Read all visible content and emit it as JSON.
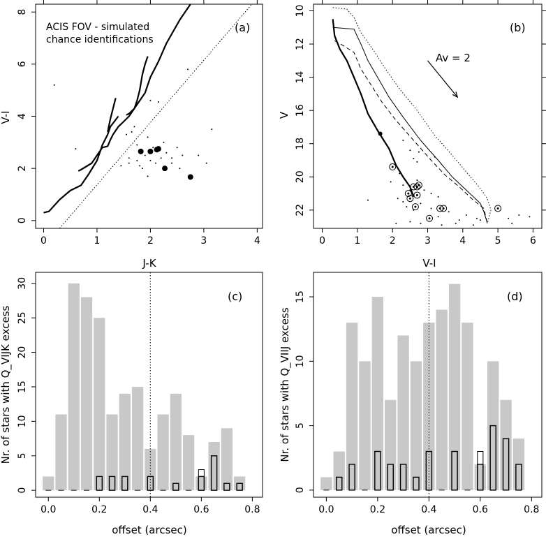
{
  "chart_data": [
    {
      "type": "scatter",
      "panel_label": "(a)",
      "annotation": [
        "ACIS FOV - simulated",
        "chance identifications"
      ],
      "xlabel": "J-K",
      "ylabel": "V-I",
      "xlim": [
        -0.15,
        4.1
      ],
      "ylim": [
        -0.3,
        8.3
      ],
      "x_ticks": [
        "0",
        "1",
        "2",
        "3",
        "4"
      ],
      "y_ticks": [
        "0",
        "2",
        "4",
        "6",
        "8"
      ],
      "big_points": [
        [
          1.82,
          2.65
        ],
        [
          2.0,
          2.65
        ],
        [
          2.12,
          2.72
        ],
        [
          2.15,
          2.75
        ],
        [
          2.27,
          2.0
        ],
        [
          2.75,
          1.67
        ]
      ],
      "small_points": [
        [
          0.2,
          5.2
        ],
        [
          0.6,
          2.75
        ],
        [
          1.55,
          3.3
        ],
        [
          1.65,
          3.4
        ],
        [
          1.7,
          3.6
        ],
        [
          1.45,
          2.1
        ],
        [
          1.6,
          2.4
        ],
        [
          1.6,
          2.2
        ],
        [
          1.75,
          2.9
        ],
        [
          1.75,
          2.3
        ],
        [
          1.8,
          2.1
        ],
        [
          1.85,
          2.0
        ],
        [
          1.9,
          2.5
        ],
        [
          1.95,
          3.2
        ],
        [
          1.95,
          1.7
        ],
        [
          2.0,
          2.3
        ],
        [
          2.05,
          2.8
        ],
        [
          2.1,
          2.2
        ],
        [
          2.2,
          2.4
        ],
        [
          2.25,
          3.0
        ],
        [
          2.3,
          2.6
        ],
        [
          2.4,
          2.2
        ],
        [
          2.4,
          2.4
        ],
        [
          2.5,
          2.8
        ],
        [
          2.55,
          2.0
        ],
        [
          2.6,
          2.5
        ],
        [
          2.9,
          2.5
        ],
        [
          3.05,
          2.2
        ],
        [
          3.15,
          3.5
        ],
        [
          2.0,
          4.6
        ],
        [
          2.15,
          4.55
        ],
        [
          2.7,
          5.8
        ]
      ],
      "lines": [
        {
          "style": "solid-thick",
          "points": [
            [
              0.0,
              0.3
            ],
            [
              0.1,
              0.35
            ],
            [
              0.3,
              0.8
            ],
            [
              0.5,
              1.15
            ],
            [
              0.7,
              1.35
            ],
            [
              0.85,
              1.8
            ],
            [
              1.0,
              2.3
            ],
            [
              1.1,
              2.9
            ],
            [
              1.2,
              3.3
            ],
            [
              1.25,
              3.6
            ],
            [
              1.4,
              4.0
            ]
          ]
        },
        {
          "style": "solid-thick",
          "points": [
            [
              0.65,
              1.9
            ],
            [
              0.7,
              1.95
            ],
            [
              0.9,
              2.2
            ],
            [
              1.0,
              2.5
            ],
            [
              1.1,
              2.8
            ],
            [
              1.2,
              2.85
            ],
            [
              1.25,
              3.1
            ],
            [
              1.3,
              3.3
            ],
            [
              1.4,
              3.6
            ],
            [
              1.5,
              3.8
            ],
            [
              1.6,
              4.0
            ],
            [
              1.7,
              4.3
            ],
            [
              1.8,
              4.6
            ],
            [
              1.9,
              4.9
            ],
            [
              2.0,
              5.5
            ],
            [
              2.15,
              6.1
            ],
            [
              2.3,
              6.8
            ],
            [
              2.55,
              7.7
            ],
            [
              2.75,
              8.3
            ]
          ]
        },
        {
          "style": "solid-thick",
          "points": [
            [
              1.2,
              3.4
            ],
            [
              1.25,
              3.9
            ],
            [
              1.3,
              4.3
            ],
            [
              1.35,
              4.7
            ]
          ]
        },
        {
          "style": "solid-thick",
          "points": [
            [
              1.55,
              4.05
            ],
            [
              1.6,
              4.1
            ],
            [
              1.7,
              4.3
            ],
            [
              1.75,
              4.6
            ],
            [
              1.8,
              5.0
            ],
            [
              1.85,
              5.6
            ],
            [
              1.9,
              6.0
            ],
            [
              1.95,
              6.3
            ]
          ]
        },
        {
          "style": "dotted",
          "points": [
            [
              0.3,
              -0.3
            ],
            [
              3.9,
              8.3
            ]
          ]
        }
      ]
    },
    {
      "type": "scatter",
      "panel_label": "(b)",
      "annotation": "Av = 2",
      "xlabel": "V-I",
      "ylabel": "V",
      "xlim": [
        -0.25,
        6.25
      ],
      "ylim": [
        23.1,
        9.6
      ],
      "x_ticks": [
        "0",
        "1",
        "2",
        "3",
        "4",
        "5",
        "6"
      ],
      "y_ticks": [
        "10",
        "12",
        "14",
        "16",
        "18",
        "20",
        "22"
      ],
      "y_tick_values": [
        10,
        12,
        14,
        16,
        18,
        20,
        22
      ],
      "big_points": [
        [
          1.65,
          17.4
        ]
      ],
      "circled_points": [
        [
          2.0,
          19.4
        ],
        [
          2.45,
          21.0
        ],
        [
          2.5,
          21.3
        ],
        [
          2.6,
          20.6
        ],
        [
          2.7,
          20.6
        ],
        [
          2.75,
          20.5
        ],
        [
          2.7,
          21.1
        ],
        [
          2.65,
          21.8
        ],
        [
          3.05,
          22.5
        ],
        [
          3.35,
          21.9
        ],
        [
          3.45,
          21.9
        ],
        [
          5.0,
          21.9
        ]
      ],
      "small_points": [
        [
          2.3,
          17.8
        ],
        [
          2.5,
          18.4
        ],
        [
          2.6,
          18.9
        ],
        [
          2.7,
          19.1
        ],
        [
          2.75,
          18.5
        ],
        [
          3.2,
          18.8
        ],
        [
          2.2,
          19.8
        ],
        [
          2.3,
          20.5
        ],
        [
          2.5,
          20.8
        ],
        [
          2.7,
          20.2
        ],
        [
          2.9,
          20.8
        ],
        [
          3.1,
          21.0
        ],
        [
          3.3,
          21.2
        ],
        [
          2.3,
          21.5
        ],
        [
          2.4,
          21.8
        ],
        [
          2.6,
          22.0
        ],
        [
          2.8,
          21.6
        ],
        [
          3.1,
          21.9
        ],
        [
          3.3,
          22.4
        ],
        [
          3.6,
          22.1
        ],
        [
          3.9,
          22.6
        ],
        [
          4.1,
          22.3
        ],
        [
          4.4,
          22.5
        ],
        [
          2.1,
          22.8
        ],
        [
          2.5,
          22.7
        ],
        [
          2.8,
          22.8
        ],
        [
          3.4,
          22.9
        ],
        [
          3.8,
          22.8
        ],
        [
          4.3,
          22.9
        ],
        [
          4.5,
          22.6
        ],
        [
          5.3,
          22.5
        ],
        [
          5.6,
          22.3
        ],
        [
          5.4,
          22.8
        ],
        [
          5.9,
          22.4
        ],
        [
          1.3,
          21.4
        ],
        [
          1.95,
          20.3
        ],
        [
          2.15,
          21.3
        ]
      ],
      "lines": [
        {
          "style": "solid-thick",
          "points": [
            [
              0.3,
              10.5
            ],
            [
              0.35,
              11.5
            ],
            [
              0.5,
              12.3
            ],
            [
              0.7,
              13.0
            ],
            [
              0.9,
              14.0
            ],
            [
              1.1,
              15.0
            ],
            [
              1.3,
              16.2
            ],
            [
              1.6,
              17.3
            ],
            [
              1.9,
              18.3
            ],
            [
              2.1,
              19.3
            ],
            [
              2.3,
              20.0
            ],
            [
              2.5,
              20.6
            ],
            [
              2.6,
              21.2
            ]
          ]
        },
        {
          "style": "solid",
          "points": [
            [
              0.3,
              11.0
            ],
            [
              0.9,
              11.1
            ],
            [
              1.1,
              12.0
            ],
            [
              1.3,
              13.0
            ],
            [
              1.6,
              14.1
            ],
            [
              1.9,
              15.2
            ],
            [
              2.3,
              16.4
            ],
            [
              2.8,
              17.8
            ],
            [
              3.3,
              19.0
            ],
            [
              3.7,
              20.0
            ],
            [
              4.1,
              20.8
            ],
            [
              4.5,
              21.6
            ],
            [
              4.6,
              22.1
            ],
            [
              4.7,
              22.8
            ]
          ]
        },
        {
          "style": "dashed",
          "points": [
            [
              0.35,
              11.8
            ],
            [
              0.6,
              12.1
            ],
            [
              0.9,
              12.5
            ],
            [
              1.1,
              13.5
            ],
            [
              1.4,
              14.5
            ],
            [
              1.7,
              15.5
            ],
            [
              2.1,
              16.6
            ],
            [
              2.6,
              17.8
            ],
            [
              3.1,
              19.0
            ],
            [
              3.5,
              19.9
            ],
            [
              3.9,
              20.6
            ],
            [
              4.3,
              21.4
            ],
            [
              4.6,
              21.9
            ],
            [
              4.7,
              22.8
            ]
          ]
        },
        {
          "style": "dotted",
          "points": [
            [
              0.3,
              9.8
            ],
            [
              0.7,
              9.9
            ],
            [
              0.9,
              10.4
            ],
            [
              1.1,
              11.3
            ],
            [
              1.5,
              12.5
            ],
            [
              1.8,
              13.5
            ],
            [
              2.2,
              14.7
            ],
            [
              2.7,
              16.0
            ],
            [
              3.2,
              17.5
            ],
            [
              3.7,
              18.7
            ],
            [
              4.1,
              19.7
            ],
            [
              4.5,
              20.7
            ],
            [
              4.7,
              21.3
            ],
            [
              4.8,
              22.0
            ],
            [
              4.7,
              22.8
            ]
          ]
        }
      ],
      "arrow": {
        "from": [
          3.0,
          13.0
        ],
        "to": [
          3.85,
          15.2
        ]
      }
    },
    {
      "type": "bar",
      "panel_label": "(c)",
      "xlabel": "offset (arcsec)",
      "ylabel": "Nr. of stars with Q_VIJK excess",
      "xlim": [
        -0.05,
        0.84
      ],
      "ylim": [
        -1,
        31.6
      ],
      "x_ticks": [
        "0.0",
        "0.2",
        "0.4",
        "0.6",
        "0.8"
      ],
      "y_ticks": [
        "0",
        "5",
        "10",
        "15",
        "20",
        "25",
        "30"
      ],
      "bin_centers": [
        0.0,
        0.05,
        0.1,
        0.15,
        0.2,
        0.25,
        0.3,
        0.35,
        0.4,
        0.45,
        0.5,
        0.55,
        0.6,
        0.65,
        0.7,
        0.75
      ],
      "grey_values": [
        2,
        11,
        30,
        28,
        25,
        11,
        14,
        15,
        6,
        11,
        14,
        8,
        2,
        7,
        9,
        2
      ],
      "outline_values": [
        0,
        0,
        0,
        0,
        2,
        2,
        2,
        0,
        2,
        0,
        1,
        0,
        3,
        5,
        1,
        1
      ],
      "thick_heights": [
        0,
        0,
        0,
        0,
        2,
        2,
        2,
        0,
        2,
        0,
        1,
        0,
        2,
        5,
        1,
        1
      ],
      "cutoff_x": 0.4
    },
    {
      "type": "bar",
      "panel_label": "(d)",
      "xlabel": "offset (arcsec)",
      "ylabel": "Nr. of stars with Q_VIIJ excess",
      "xlim": [
        -0.05,
        0.84
      ],
      "ylim": [
        -0.55,
        16.9
      ],
      "x_ticks": [
        "0.0",
        "0.2",
        "0.4",
        "0.6",
        "0.8"
      ],
      "y_ticks": [
        "0",
        "5",
        "10",
        "15"
      ],
      "bin_centers": [
        0.0,
        0.05,
        0.1,
        0.15,
        0.2,
        0.25,
        0.3,
        0.35,
        0.4,
        0.45,
        0.5,
        0.55,
        0.6,
        0.65,
        0.7,
        0.75
      ],
      "grey_values": [
        1,
        3,
        13,
        10,
        15,
        7,
        12,
        10,
        13,
        14,
        16,
        13,
        2,
        10,
        7,
        4
      ],
      "outline_values": [
        0,
        1,
        2,
        0,
        3,
        2,
        2,
        1,
        3,
        0,
        3,
        0,
        3,
        5,
        4,
        2
      ],
      "thick_heights": [
        0,
        1,
        2,
        0,
        3,
        2,
        2,
        1,
        3,
        0,
        3,
        0,
        2,
        5,
        4,
        2
      ],
      "cutoff_x": 0.4
    }
  ]
}
